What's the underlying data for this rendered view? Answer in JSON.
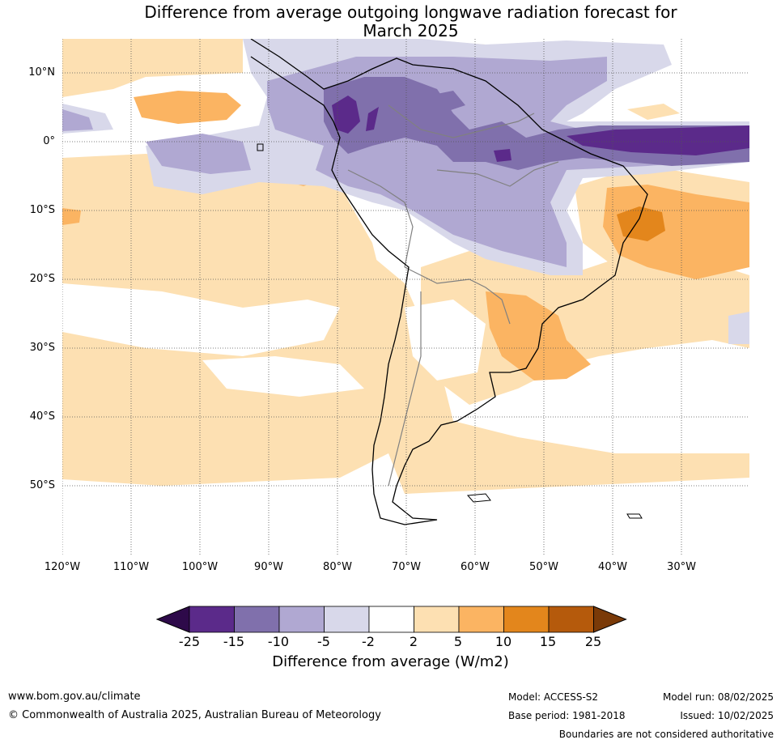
{
  "title_line1": "Difference from average outgoing longwave radiation forecast for",
  "title_line2": "March 2025",
  "lat_labels": [
    "10°N",
    "0°",
    "10°S",
    "20°S",
    "30°S",
    "40°S",
    "50°S"
  ],
  "lon_labels": [
    "120°W",
    "110°W",
    "100°W",
    "90°W",
    "80°W",
    "70°W",
    "60°W",
    "50°W",
    "40°W",
    "30°W"
  ],
  "colorbar": {
    "ticks": [
      "-25",
      "-15",
      "-10",
      "-5",
      "-2",
      "2",
      "5",
      "10",
      "15",
      "25"
    ],
    "colors": [
      "#5b2a8a",
      "#8070ac",
      "#b0a8d2",
      "#d8d8ea",
      "#ffffff",
      "#fde0b2",
      "#fbb462",
      "#e3861c",
      "#b55a0c"
    ],
    "low_extend_color": "#2e0a4a",
    "high_extend_color": "#7a3a08",
    "label": "Difference from average (W/m2)"
  },
  "footer": {
    "website": "www.bom.gov.au/climate",
    "copyright": "© Commonwealth of Australia 2025, Australian Bureau of Meteorology",
    "model": "Model: ACCESS-S2",
    "model_run": "Model run: 08/02/2025",
    "base_period": "Base period: 1981-2018",
    "issued": "Issued: 10/02/2025",
    "disclaimer": "Boundaries are not considered authoritative"
  }
}
